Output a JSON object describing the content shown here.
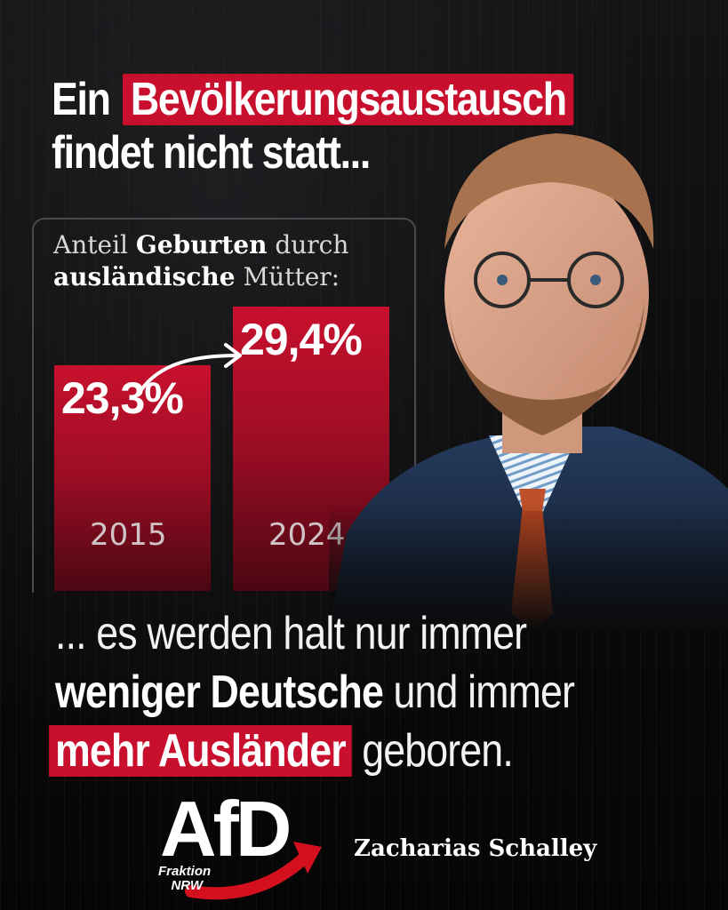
{
  "headline": {
    "line1_prefix": "Ein",
    "line1_highlight": "Bevölkerungsaustausch",
    "line2": "findet nicht statt..."
  },
  "chart": {
    "title_part1": "Anteil",
    "title_bold1": "Geburten",
    "title_part2": "durch",
    "title_bold2": "ausländische",
    "title_part3": "Mütter:"
  },
  "chart_data": {
    "type": "bar",
    "title": "Anteil Geburten durch ausländische Mütter:",
    "categories": [
      "2015",
      "2024"
    ],
    "values": [
      23.3,
      29.4
    ],
    "value_labels": [
      "23,3%",
      "29,4%"
    ],
    "ylim": [
      0,
      50
    ],
    "colors": {
      "bar": "#c8102e"
    }
  },
  "bottom": {
    "line1": "... es werden halt nur immer",
    "line2_bold": "weniger Deutsche",
    "line2_rest": "und immer",
    "line3_bold": "mehr Ausländer",
    "line3_rest": "geboren."
  },
  "logo": {
    "text": "AfD",
    "sub1": "Fraktion",
    "sub2": "NRW"
  },
  "author": "Zacharias Schalley",
  "colors": {
    "accent": "#c8102e",
    "background": "#0b0b0c"
  }
}
